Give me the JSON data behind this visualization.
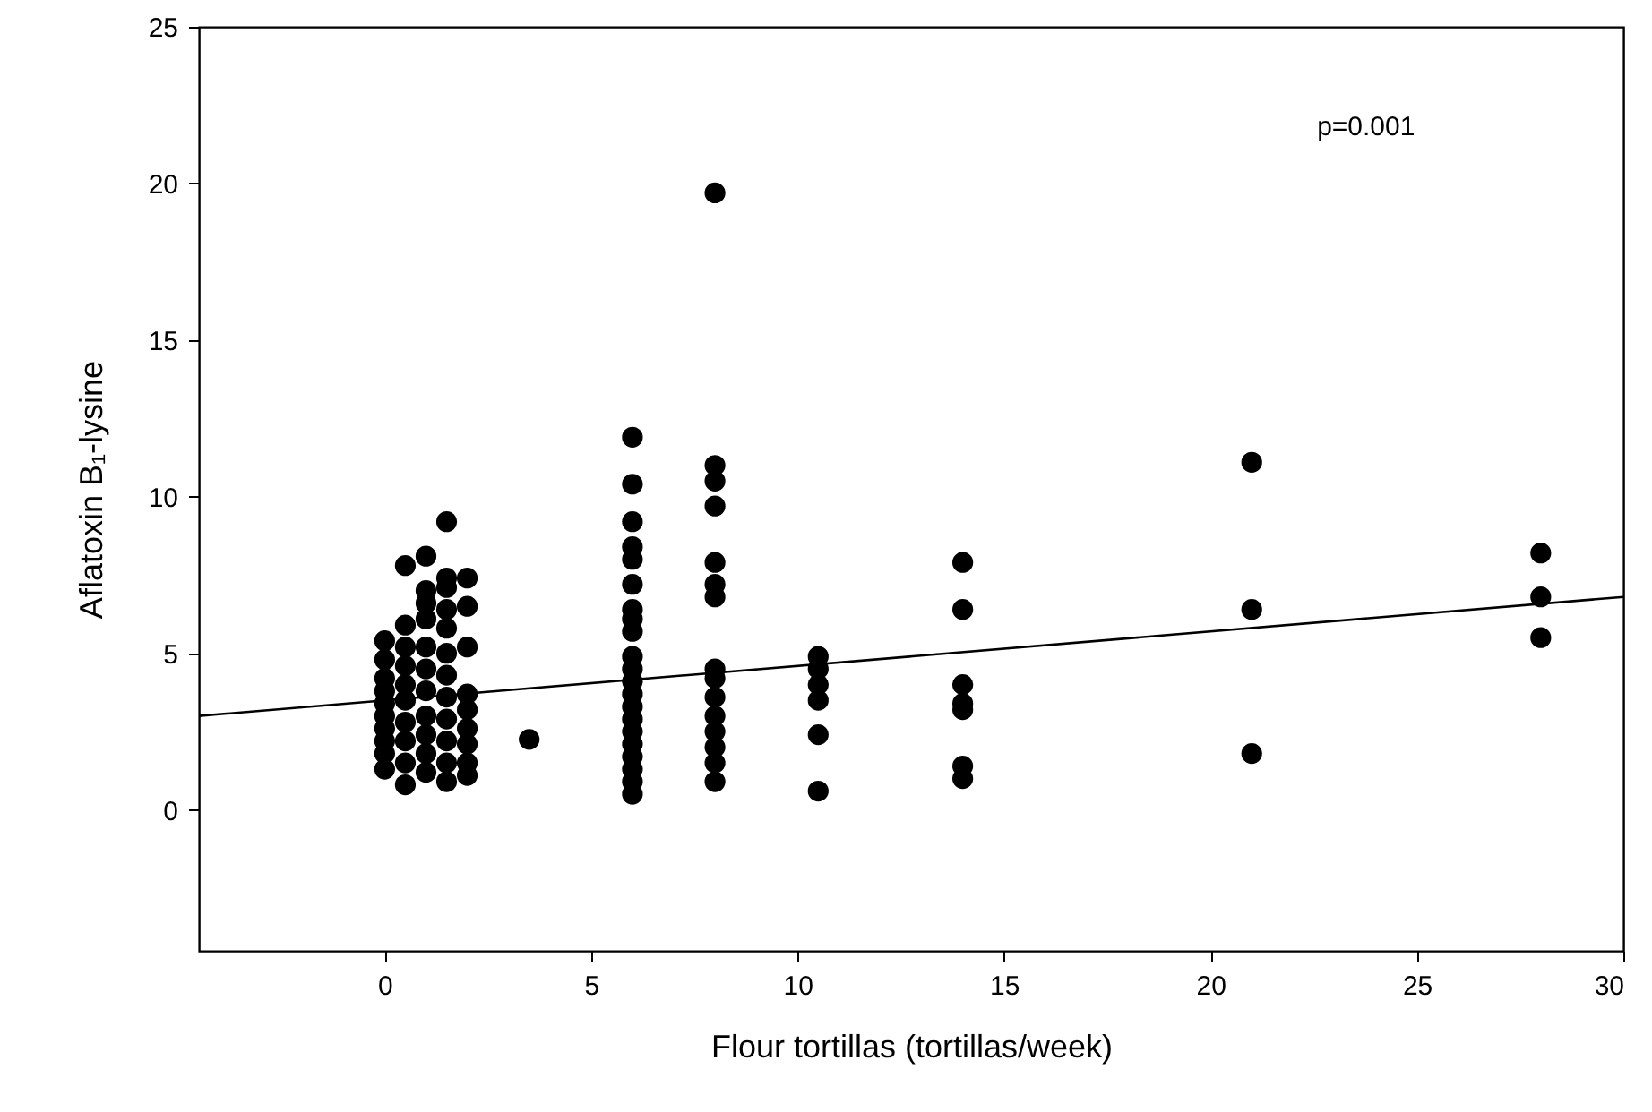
{
  "chart_data": {
    "type": "scatter",
    "xlabel": "Flour tortillas (tortillas/week)",
    "ylabel": "Aflatoxin B₁-lysine",
    "annotations": [
      "p=0.001"
    ],
    "xlim": [
      -4.5,
      30
    ],
    "ylim": [
      -4.5,
      25
    ],
    "xticks": [
      0,
      5,
      10,
      15,
      20,
      25,
      30
    ],
    "yticks": [
      0,
      5,
      10,
      15,
      20,
      25
    ],
    "grid": false,
    "marker": "circle",
    "series": [
      {
        "color": "#000000",
        "x": [
          0,
          0,
          0,
          0,
          0,
          0,
          0,
          0,
          0,
          0,
          0.5,
          0.5,
          0.5,
          0.5,
          0.5,
          0.5,
          0.5,
          0.5,
          0.5,
          0.5,
          1,
          1,
          1,
          1,
          1,
          1,
          1,
          1,
          1,
          1,
          1,
          1.5,
          1.5,
          1.5,
          1.5,
          1.5,
          1.5,
          1.5,
          1.5,
          1.5,
          1.5,
          1.5,
          1.5,
          2,
          2,
          2,
          2,
          2,
          2,
          2,
          2,
          2,
          3.5,
          6,
          6,
          6,
          6,
          6,
          6,
          6,
          6,
          6,
          6,
          6,
          6,
          6,
          6,
          6,
          6,
          6,
          6,
          6,
          6,
          6,
          8,
          8,
          8,
          8,
          8,
          8,
          8,
          8,
          8,
          8,
          8,
          8,
          8,
          8,
          8,
          10.5,
          10.5,
          10.5,
          10.5,
          10.5,
          10.5,
          14,
          14,
          14,
          14,
          14,
          14,
          14,
          21,
          21,
          21,
          28,
          28,
          28
        ],
        "values": [
          5.4,
          4.8,
          4.2,
          3.8,
          3.4,
          3.0,
          2.6,
          2.2,
          1.8,
          1.3,
          7.8,
          5.9,
          5.2,
          4.6,
          4.0,
          3.5,
          2.8,
          2.2,
          1.5,
          0.8,
          8.1,
          7.0,
          6.6,
          6.1,
          5.2,
          4.5,
          3.8,
          3.0,
          2.4,
          1.8,
          1.2,
          9.2,
          7.4,
          7.1,
          6.4,
          5.8,
          5.0,
          4.3,
          3.6,
          2.9,
          2.2,
          1.5,
          0.9,
          7.4,
          6.5,
          5.2,
          3.7,
          3.2,
          2.6,
          2.1,
          1.5,
          1.1,
          2.25,
          11.9,
          10.4,
          9.2,
          8.4,
          8.0,
          7.2,
          6.4,
          6.1,
          5.7,
          4.9,
          4.5,
          4.1,
          3.7,
          3.3,
          2.9,
          2.5,
          2.1,
          1.7,
          1.3,
          0.9,
          0.5,
          19.7,
          11.0,
          10.5,
          9.7,
          7.9,
          7.2,
          6.8,
          4.5,
          4.2,
          3.6,
          3.0,
          2.5,
          2.0,
          1.5,
          0.9,
          4.9,
          4.5,
          4.0,
          3.5,
          2.4,
          0.6,
          7.9,
          6.4,
          4.0,
          3.4,
          3.2,
          1.4,
          1.0,
          11.1,
          6.4,
          1.8,
          8.2,
          6.8,
          5.5
        ]
      },
      {
        "type": "line",
        "marker": "none",
        "color": "#000000",
        "x": [
          -4.5,
          30
        ],
        "values": [
          3.0,
          6.8
        ]
      }
    ]
  }
}
